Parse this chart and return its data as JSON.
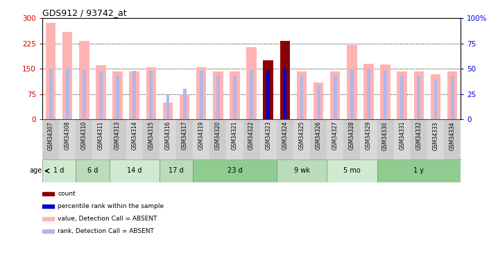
{
  "title": "GDS912 / 93742_at",
  "samples": [
    "GSM34307",
    "GSM34308",
    "GSM34310",
    "GSM34311",
    "GSM34313",
    "GSM34314",
    "GSM34315",
    "GSM34316",
    "GSM34317",
    "GSM34319",
    "GSM34320",
    "GSM34321",
    "GSM34322",
    "GSM34323",
    "GSM34324",
    "GSM34325",
    "GSM34326",
    "GSM34327",
    "GSM34328",
    "GSM34329",
    "GSM34330",
    "GSM34331",
    "GSM34332",
    "GSM34333",
    "GSM34334"
  ],
  "value_absent": [
    287,
    260,
    232,
    160,
    143,
    143,
    155,
    50,
    75,
    155,
    143,
    143,
    215,
    175,
    0,
    143,
    110,
    143,
    220,
    165,
    163,
    143,
    143,
    133,
    143
  ],
  "rank_absent_pct": [
    50,
    50,
    49,
    47,
    43,
    48,
    48,
    25,
    30,
    48,
    43,
    43,
    49,
    48,
    0,
    43,
    33,
    43,
    50,
    50,
    48,
    43,
    43,
    40,
    43
  ],
  "count_value": [
    0,
    0,
    0,
    0,
    0,
    0,
    0,
    0,
    0,
    0,
    0,
    0,
    0,
    175,
    232,
    0,
    0,
    0,
    0,
    0,
    0,
    0,
    0,
    0,
    0
  ],
  "rank_present_pct": [
    0,
    0,
    0,
    0,
    0,
    0,
    0,
    0,
    0,
    0,
    0,
    0,
    0,
    48,
    50,
    0,
    0,
    0,
    0,
    0,
    0,
    0,
    0,
    0,
    0
  ],
  "age_groups": [
    {
      "label": "1 d",
      "start": 0,
      "end": 2,
      "color": "#d0ead0"
    },
    {
      "label": "6 d",
      "start": 2,
      "end": 4,
      "color": "#b8ddb8"
    },
    {
      "label": "14 d",
      "start": 4,
      "end": 7,
      "color": "#d0ead0"
    },
    {
      "label": "17 d",
      "start": 7,
      "end": 9,
      "color": "#b8ddb8"
    },
    {
      "label": "23 d",
      "start": 9,
      "end": 14,
      "color": "#90cc90"
    },
    {
      "label": "9 wk",
      "start": 14,
      "end": 17,
      "color": "#b8ddb8"
    },
    {
      "label": "5 mo",
      "start": 17,
      "end": 20,
      "color": "#d0ead0"
    },
    {
      "label": "1 y",
      "start": 20,
      "end": 25,
      "color": "#90cc90"
    }
  ],
  "ylim_left": [
    0,
    300
  ],
  "ylim_right": [
    0,
    100
  ],
  "yticks_left": [
    0,
    75,
    150,
    225,
    300
  ],
  "yticks_right": [
    0,
    25,
    50,
    75,
    100
  ],
  "color_absent_value": "#ffb3b3",
  "color_absent_rank": "#b0b8e8",
  "color_count": "#8b0000",
  "color_rank_present": "#0000cd",
  "grid_color": "black",
  "bg_color": "white",
  "title_color": "black",
  "left_tick_color": "#cc0000",
  "right_tick_color": "#0000cc",
  "bar_width": 0.6,
  "rank_bar_width": 0.2
}
